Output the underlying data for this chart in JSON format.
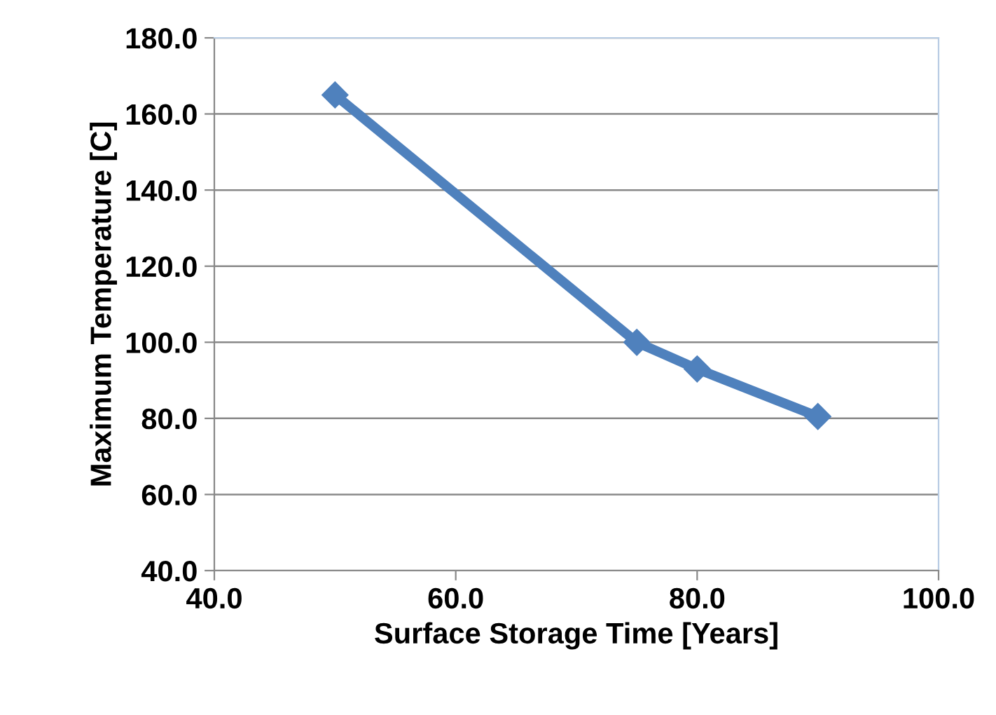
{
  "chart_data": {
    "type": "line",
    "xlabel": "Surface Storage Time [Years]",
    "ylabel": "Maximum Temperature [C]",
    "x": [
      50,
      75,
      80,
      90
    ],
    "series": [
      {
        "color": "#4f81bd",
        "values": [
          165,
          100,
          93,
          80.5
        ]
      }
    ],
    "xlim": [
      40,
      100
    ],
    "ylim": [
      40,
      180
    ],
    "xticks": [
      {
        "value": 40,
        "label": "40.0"
      },
      {
        "value": 60,
        "label": "60.0"
      },
      {
        "value": 80,
        "label": "80.0"
      },
      {
        "value": 100,
        "label": "100.0"
      }
    ],
    "yticks": [
      {
        "value": 40,
        "label": "40.0"
      },
      {
        "value": 60,
        "label": "60.0"
      },
      {
        "value": 80,
        "label": "80.0"
      },
      {
        "value": 100,
        "label": "100.0"
      },
      {
        "value": 120,
        "label": "120.0"
      },
      {
        "value": 140,
        "label": "140.0"
      },
      {
        "value": 160,
        "label": "160.0"
      },
      {
        "value": 180,
        "label": "180.0"
      }
    ],
    "grid": "y",
    "marker": "diamond",
    "line_style": "solid"
  }
}
